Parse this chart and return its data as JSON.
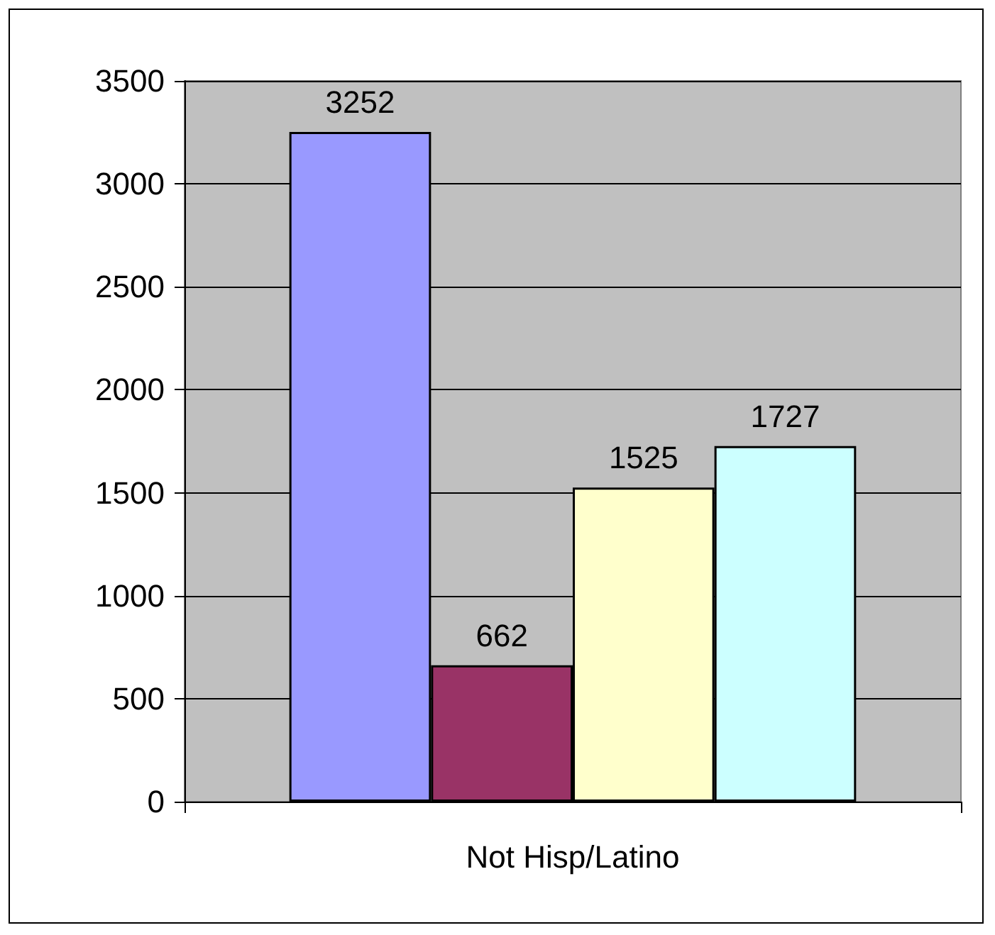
{
  "chart_data": {
    "type": "bar",
    "categories": [
      "Not Hisp/Latino"
    ],
    "series": [
      {
        "color": "#9999ff",
        "values": [
          3252
        ]
      },
      {
        "color": "#993366",
        "values": [
          662
        ]
      },
      {
        "color": "#ffffcc",
        "values": [
          1525
        ]
      },
      {
        "color": "#ccffff",
        "values": [
          1727
        ]
      }
    ],
    "ylim": [
      0,
      3500
    ],
    "yticks": [
      0,
      500,
      1000,
      1500,
      2000,
      2500,
      3000,
      3500
    ],
    "grid": "y",
    "data_labels": true
  }
}
